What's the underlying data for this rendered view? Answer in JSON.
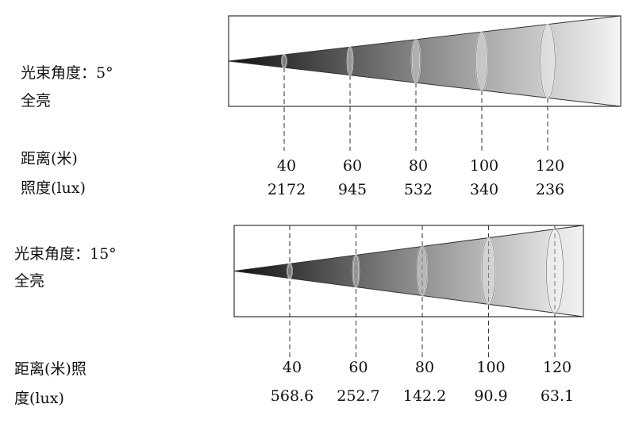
{
  "panels": [
    {
      "beam_label": "光束角度：5°",
      "mode": "全亮",
      "row_labels": [
        "距离(米)",
        "照度(lux)"
      ],
      "distances": [
        40,
        60,
        80,
        100,
        120
      ],
      "lux": [
        2172,
        945,
        532,
        340,
        236
      ]
    },
    {
      "beam_label": "光束角度：15°",
      "mode": "全亮",
      "row_labels": [
        "距离(米)照",
        "度(lux)"
      ],
      "distances": [
        40,
        60,
        80,
        100,
        120
      ],
      "lux": [
        568.6,
        252.7,
        142.2,
        90.9,
        63.1
      ]
    }
  ]
}
